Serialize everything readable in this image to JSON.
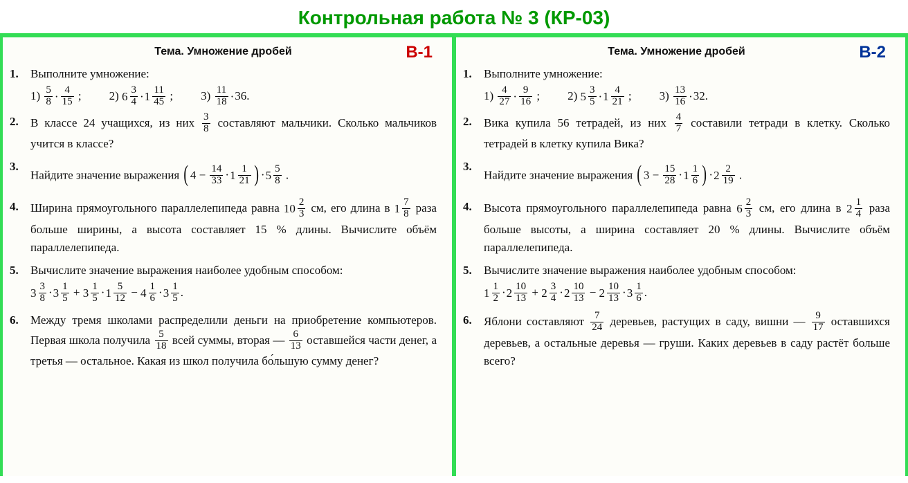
{
  "title": "Контрольная работа № 3 (КР-03)",
  "title_color": "#009900",
  "border_color": "#33dd55",
  "variants": {
    "v1": {
      "badge": "В-1",
      "badge_color": "#cc0000",
      "topic_label": "Тема.",
      "topic_text": "Умножение дробей",
      "problems": [
        {
          "num": "1.",
          "text": "Выполните умножение:",
          "subparts": [
            {
              "label": "1)",
              "expr_html": "<span class='frac'><span class='n'>5</span><span class='d'>8</span></span><span class='dot'>·</span><span class='frac'><span class='n'>4</span><span class='d'>15</span></span> ;"
            },
            {
              "label": "2)",
              "expr_html": "<span class='mix'><span class='whole'>6</span><span class='frac'><span class='n'>3</span><span class='d'>4</span></span></span><span class='dot'>·</span><span class='mix'><span class='whole'>1</span><span class='frac'><span class='n'>11</span><span class='d'>45</span></span></span> ;"
            },
            {
              "label": "3)",
              "expr_html": "<span class='frac'><span class='n'>11</span><span class='d'>18</span></span><span class='dot'>·</span>36."
            }
          ]
        },
        {
          "num": "2.",
          "text_html": "В классе 24 учащихся, из них <span class='frac'><span class='n'>3</span><span class='d'>8</span></span> составляют мальчики. Сколько мальчиков учится в классе?"
        },
        {
          "num": "3.",
          "text_html": "Найдите значение выражения <span class='bigp'>(</span>4 − <span class='frac'><span class='n'>14</span><span class='d'>33</span></span><span class='dot'>·</span><span class='mix'><span class='whole'>1</span><span class='frac'><span class='n'>1</span><span class='d'>21</span></span></span><span class='bigp'>)</span><span class='dot'>·</span><span class='mix'><span class='whole'>5</span><span class='frac'><span class='n'>5</span><span class='d'>8</span></span></span> ."
        },
        {
          "num": "4.",
          "text_html": "Ширина прямоугольного параллелепипеда равна <span class='mix'><span class='whole'>10</span><span class='frac'><span class='n'>2</span><span class='d'>3</span></span></span> см, его длина в <span class='mix'><span class='whole'>1</span><span class='frac'><span class='n'>7</span><span class='d'>8</span></span></span> раза больше ширины, а высота составляет 15 % длины. Вычислите объём параллелепипеда."
        },
        {
          "num": "5.",
          "text": "Вычислите значение выражения наиболее удобным способом:",
          "expr_line_html": "<span class='mix'><span class='whole'>3</span><span class='frac'><span class='n'>3</span><span class='d'>8</span></span></span><span class='dot'>·</span><span class='mix'><span class='whole'>3</span><span class='frac'><span class='n'>1</span><span class='d'>5</span></span></span> + <span class='mix'><span class='whole'>3</span><span class='frac'><span class='n'>1</span><span class='d'>5</span></span></span><span class='dot'>·</span><span class='mix'><span class='whole'>1</span><span class='frac'><span class='n'>5</span><span class='d'>12</span></span></span> − <span class='mix'><span class='whole'>4</span><span class='frac'><span class='n'>1</span><span class='d'>6</span></span></span><span class='dot'>·</span><span class='mix'><span class='whole'>3</span><span class='frac'><span class='n'>1</span><span class='d'>5</span></span></span>."
        },
        {
          "num": "6.",
          "text_html": "Между тремя школами распределили деньги на приобретение компьютеров. Первая школа получила <span class='frac'><span class='n'>5</span><span class='d'>18</span></span> всей суммы, вторая — <span class='frac'><span class='n'>6</span><span class='d'>13</span></span> оставшейся части денег, а третья — остальное. Какая из школ получила бо́льшую сумму денег?"
        }
      ]
    },
    "v2": {
      "badge": "В-2",
      "badge_color": "#003399",
      "topic_label": "Тема.",
      "topic_text": "Умножение дробей",
      "problems": [
        {
          "num": "1.",
          "text": "Выполните умножение:",
          "subparts": [
            {
              "label": "1)",
              "expr_html": "<span class='frac'><span class='n'>4</span><span class='d'>27</span></span><span class='dot'>·</span><span class='frac'><span class='n'>9</span><span class='d'>16</span></span> ;"
            },
            {
              "label": "2)",
              "expr_html": "<span class='mix'><span class='whole'>5</span><span class='frac'><span class='n'>3</span><span class='d'>5</span></span></span><span class='dot'>·</span><span class='mix'><span class='whole'>1</span><span class='frac'><span class='n'>4</span><span class='d'>21</span></span></span> ;"
            },
            {
              "label": "3)",
              "expr_html": "<span class='frac'><span class='n'>13</span><span class='d'>16</span></span><span class='dot'>·</span>32."
            }
          ]
        },
        {
          "num": "2.",
          "text_html": "Вика купила 56 тетрадей, из них <span class='frac'><span class='n'>4</span><span class='d'>7</span></span> составили тетради в клетку. Сколько тетрадей в клетку купила Вика?"
        },
        {
          "num": "3.",
          "text_html": "Найдите значение выражения <span class='bigp'>(</span>3 − <span class='frac'><span class='n'>15</span><span class='d'>28</span></span><span class='dot'>·</span><span class='mix'><span class='whole'>1</span><span class='frac'><span class='n'>1</span><span class='d'>6</span></span></span><span class='bigp'>)</span><span class='dot'>·</span><span class='mix'><span class='whole'>2</span><span class='frac'><span class='n'>2</span><span class='d'>19</span></span></span> ."
        },
        {
          "num": "4.",
          "text_html": "Высота прямоугольного параллелепипеда равна <span class='mix'><span class='whole'>6</span><span class='frac'><span class='n'>2</span><span class='d'>3</span></span></span> см, его длина в <span class='mix'><span class='whole'>2</span><span class='frac'><span class='n'>1</span><span class='d'>4</span></span></span> раза больше высоты, а ширина составляет 20 % длины. Вычислите объём параллелепипеда."
        },
        {
          "num": "5.",
          "text": "Вычислите значение выражения наиболее удобным способом:",
          "expr_line_html": "<span class='mix'><span class='whole'>1</span><span class='frac'><span class='n'>1</span><span class='d'>2</span></span></span><span class='dot'>·</span><span class='mix'><span class='whole'>2</span><span class='frac'><span class='n'>10</span><span class='d'>13</span></span></span> + <span class='mix'><span class='whole'>2</span><span class='frac'><span class='n'>3</span><span class='d'>4</span></span></span><span class='dot'>·</span><span class='mix'><span class='whole'>2</span><span class='frac'><span class='n'>10</span><span class='d'>13</span></span></span> − <span class='mix'><span class='whole'>2</span><span class='frac'><span class='n'>10</span><span class='d'>13</span></span></span><span class='dot'>·</span><span class='mix'><span class='whole'>3</span><span class='frac'><span class='n'>1</span><span class='d'>6</span></span></span>."
        },
        {
          "num": "6.",
          "text_html": "Яблони составляют <span class='frac'><span class='n'>7</span><span class='d'>24</span></span> деревьев, растущих в саду, вишни — <span class='frac'><span class='n'>9</span><span class='d'>17</span></span> оставшихся деревьев, а остальные деревья — груши. Каких деревьев в саду растёт больше всего?"
        }
      ]
    }
  }
}
